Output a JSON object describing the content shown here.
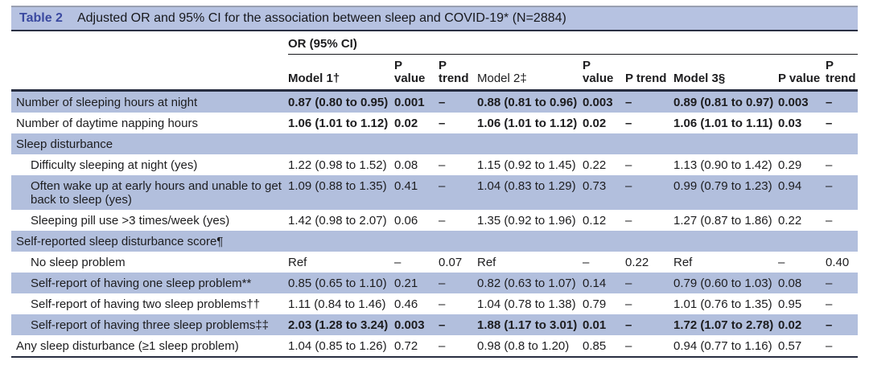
{
  "table": {
    "title_label": "Table 2",
    "title": "Adjusted OR and 95% CI for the association between sleep and COVID-19* (N=2884)",
    "group_header": "OR (95% CI)",
    "columns": [
      {
        "label": "Model 1†",
        "bold": true
      },
      {
        "label": "P value",
        "bold": true
      },
      {
        "label": "P trend",
        "bold": true
      },
      {
        "label": "Model 2‡",
        "bold": false
      },
      {
        "label": "P value",
        "bold": true
      },
      {
        "label": "P trend",
        "bold": true
      },
      {
        "label": "Model 3§",
        "bold": true
      },
      {
        "label": "P value",
        "bold": true,
        "nowrap": true
      },
      {
        "label": "P trend",
        "bold": true
      }
    ],
    "rows": [
      {
        "label": "Number of sleeping hours at night",
        "indent": false,
        "section": false,
        "shaded": true,
        "bold": true,
        "cells": [
          "0.87 (0.80 to 0.95)",
          "0.001",
          "–",
          "0.88 (0.81 to 0.96)",
          "0.003",
          "–",
          "0.89 (0.81 to 0.97)",
          "0.003",
          "–"
        ]
      },
      {
        "label": "Number of daytime napping hours",
        "indent": false,
        "section": false,
        "shaded": false,
        "bold": true,
        "cells": [
          "1.06 (1.01 to 1.12)",
          "0.02",
          "–",
          "1.06 (1.01 to 1.12)",
          "0.02",
          "–",
          "1.06 (1.01 to 1.11)",
          "0.03",
          "–"
        ]
      },
      {
        "label": "Sleep disturbance",
        "indent": false,
        "section": true,
        "shaded": true,
        "bold": false,
        "cells": []
      },
      {
        "label": "Difficulty sleeping at night (yes)",
        "indent": true,
        "section": false,
        "shaded": false,
        "bold": false,
        "cells": [
          "1.22 (0.98 to 1.52)",
          "0.08",
          "–",
          "1.15 (0.92 to 1.45)",
          "0.22",
          "–",
          "1.13 (0.90 to 1.42)",
          "0.29",
          "–"
        ]
      },
      {
        "label": "Often wake up at early hours and unable to get back to sleep (yes)",
        "indent": true,
        "section": false,
        "shaded": true,
        "bold": false,
        "cells": [
          "1.09 (0.88 to 1.35)",
          "0.41",
          "–",
          "1.04 (0.83 to 1.29)",
          "0.73",
          "–",
          "0.99 (0.79 to 1.23)",
          "0.94",
          "–"
        ]
      },
      {
        "label": "Sleeping pill use >3 times/week (yes)",
        "indent": true,
        "section": false,
        "shaded": false,
        "bold": false,
        "cells": [
          "1.42 (0.98 to 2.07)",
          "0.06",
          "–",
          "1.35 (0.92 to 1.96)",
          "0.12",
          "–",
          "1.27 (0.87 to 1.86)",
          "0.22",
          "–"
        ]
      },
      {
        "label": "Self-reported sleep disturbance score¶",
        "indent": false,
        "section": true,
        "shaded": true,
        "bold": false,
        "cells": []
      },
      {
        "label": "No sleep problem",
        "indent": true,
        "section": false,
        "shaded": false,
        "bold": false,
        "cells": [
          "Ref",
          "–",
          "0.07",
          "Ref",
          "–",
          "0.22",
          "Ref",
          "–",
          "0.40"
        ]
      },
      {
        "label": "Self-report of having one sleep problem**",
        "indent": true,
        "section": false,
        "shaded": true,
        "bold": false,
        "cells": [
          "0.85 (0.65 to 1.10)",
          "0.21",
          "–",
          "0.82 (0.63 to 1.07)",
          "0.14",
          "–",
          "0.79 (0.60 to 1.03)",
          "0.08",
          "–"
        ]
      },
      {
        "label": "Self-report of having two sleep problems††",
        "indent": true,
        "section": false,
        "shaded": false,
        "bold": false,
        "cells": [
          "1.11 (0.84 to 1.46)",
          "0.46",
          "–",
          "1.04 (0.78 to 1.38)",
          "0.79",
          "–",
          "1.01 (0.76 to 1.35)",
          "0.95",
          "–"
        ]
      },
      {
        "label": "Self-report of having three sleep problems‡‡",
        "indent": true,
        "section": false,
        "shaded": true,
        "bold": true,
        "cells": [
          "2.03 (1.28 to 3.24)",
          "0.003",
          "–",
          "1.88 (1.17 to 3.01)",
          "0.01",
          "–",
          "1.72 (1.07 to 2.78)",
          "0.02",
          "–"
        ]
      },
      {
        "label": "Any sleep disturbance (≥1 sleep problem)",
        "indent": false,
        "section": false,
        "shaded": false,
        "bold": false,
        "cells": [
          "1.04 (0.85 to 1.26)",
          "0.72",
          "–",
          "0.98 (0.8 to 1.20)",
          "0.85",
          "–",
          "0.94 (0.77 to 1.16)",
          "0.57",
          "–"
        ]
      }
    ],
    "colors": {
      "row_shade": "#b2bfdd",
      "title_bar": "#b6c2e1",
      "accent_blue": "#3a49a0",
      "rule_dark": "#272d40",
      "text": "#1d1d1f"
    }
  }
}
